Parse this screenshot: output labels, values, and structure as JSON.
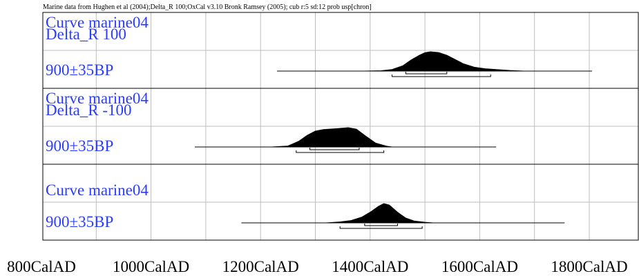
{
  "header": {
    "note": "Marine data from Hughen et al (2004);Delta_R 100;OxCal v3.10 Bronk Ramsey (2005); cub r:5 sd:12 prob usp[chron]"
  },
  "chart_data": {
    "type": "area",
    "x_axis": {
      "range": [
        800,
        1900
      ],
      "ticks": [
        800,
        1000,
        1200,
        1400,
        1600,
        1800
      ],
      "tick_labels": [
        "800CalAD",
        "1000CalAD",
        "1200CalAD",
        "1400CalAD",
        "1600CalAD",
        "1800CalAD"
      ]
    },
    "grid": true,
    "groups": [
      {
        "curve_label": [
          "Curve marine04",
          "Delta_R 100"
        ],
        "date_label": "900±35BP",
        "prior_range": [
          1230,
          1805
        ],
        "distribution": [
          [
            1390,
            0
          ],
          [
            1420,
            0.02
          ],
          [
            1440,
            0.08
          ],
          [
            1460,
            0.28
          ],
          [
            1475,
            0.58
          ],
          [
            1490,
            0.82
          ],
          [
            1500,
            0.95
          ],
          [
            1510,
            1
          ],
          [
            1525,
            0.96
          ],
          [
            1540,
            0.82
          ],
          [
            1555,
            0.6
          ],
          [
            1570,
            0.38
          ],
          [
            1590,
            0.2
          ],
          [
            1610,
            0.12
          ],
          [
            1630,
            0.08
          ],
          [
            1655,
            0.03
          ],
          [
            1680,
            0
          ]
        ],
        "hpd_68": [
          1465,
          1540
        ],
        "hpd_95": [
          1440,
          1620
        ]
      },
      {
        "curve_label": [
          "Curve marine04",
          "Delta_R -100"
        ],
        "date_label": "900±35BP",
        "prior_range": [
          1080,
          1630
        ],
        "distribution": [
          [
            1220,
            0
          ],
          [
            1250,
            0.05
          ],
          [
            1270,
            0.3
          ],
          [
            1285,
            0.6
          ],
          [
            1300,
            0.82
          ],
          [
            1315,
            0.9
          ],
          [
            1340,
            0.95
          ],
          [
            1360,
            1
          ],
          [
            1375,
            0.92
          ],
          [
            1390,
            0.6
          ],
          [
            1410,
            0.2
          ],
          [
            1430,
            0.04
          ],
          [
            1440,
            0
          ]
        ],
        "hpd_68": [
          1290,
          1380
        ],
        "hpd_95": [
          1265,
          1425
        ]
      },
      {
        "curve_label": [
          "Curve marine04"
        ],
        "date_label": "900±35BP",
        "prior_range": [
          1165,
          1755
        ],
        "distribution": [
          [
            1320,
            0
          ],
          [
            1345,
            0.05
          ],
          [
            1365,
            0.12
          ],
          [
            1385,
            0.3
          ],
          [
            1400,
            0.55
          ],
          [
            1415,
            0.85
          ],
          [
            1425,
            1
          ],
          [
            1435,
            0.92
          ],
          [
            1450,
            0.55
          ],
          [
            1465,
            0.25
          ],
          [
            1480,
            0.1
          ],
          [
            1500,
            0.03
          ],
          [
            1515,
            0
          ]
        ],
        "hpd_68": [
          1390,
          1450
        ],
        "hpd_95": [
          1345,
          1495
        ]
      }
    ]
  }
}
